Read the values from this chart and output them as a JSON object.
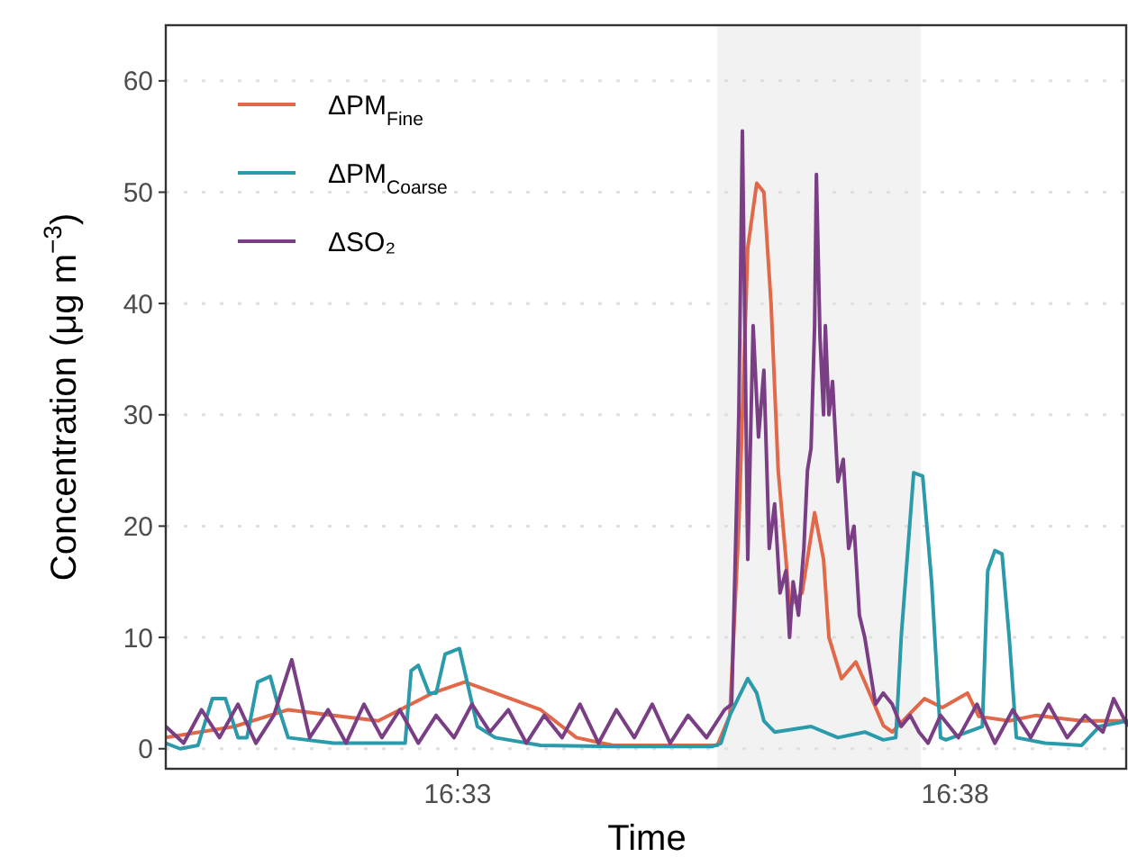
{
  "chart_data": {
    "type": "line",
    "xlabel": "Time",
    "ylabel": "Concentration (μg m$^{−3}$)",
    "xlim": [
      16.5011,
      16.6623
    ],
    "ylim": [
      -1.8,
      65
    ],
    "xticks": [
      {
        "value": 16.55,
        "label": "16:33"
      },
      {
        "value": 16.63333,
        "label": "16:38"
      }
    ],
    "yticks": [
      0,
      10,
      20,
      30,
      40,
      50,
      60
    ],
    "grid": "y",
    "legend": "top left",
    "line_style": "solid",
    "bands": [
      {
        "axis": "x",
        "from": 16.5935,
        "to": 16.6276,
        "color": "#f2f2f2"
      }
    ],
    "series": [
      {
        "name": "ΔPM$_{Fine}$",
        "color": "#e2684a",
        "x": [
          16.5011,
          16.5126,
          16.5216,
          16.5292,
          16.5367,
          16.5458,
          16.5512,
          16.5563,
          16.5639,
          16.5699,
          16.576,
          16.588,
          16.5935,
          16.5956,
          16.5971,
          16.5986,
          16.6001,
          16.6013,
          16.6025,
          16.6037,
          16.605,
          16.6056,
          16.6077,
          16.6098,
          16.6113,
          16.6122,
          16.6143,
          16.6167,
          16.6182,
          16.6213,
          16.6228,
          16.6282,
          16.6312,
          16.6354,
          16.6373,
          16.6424,
          16.6469,
          16.6545,
          16.6623
        ],
        "values": [
          1,
          2,
          3.5,
          3,
          2.5,
          5,
          6,
          5,
          3.5,
          1,
          0.3,
          0.3,
          0.3,
          3,
          20,
          45,
          50.8,
          50,
          40,
          25,
          17,
          12.8,
          14,
          21.2,
          17,
          10,
          6.3,
          7.8,
          6,
          2.1,
          1.5,
          4.5,
          3.7,
          5,
          2.9,
          2.5,
          3,
          2.5,
          2.5
        ]
      },
      {
        "name": "ΔPM$_{Coarse}$",
        "color": "#2b9bab",
        "x": [
          16.5011,
          16.5035,
          16.5065,
          16.5089,
          16.5111,
          16.5132,
          16.5147,
          16.5165,
          16.5186,
          16.5201,
          16.5216,
          16.5292,
          16.5367,
          16.5412,
          16.5422,
          16.5434,
          16.5452,
          16.5464,
          16.5479,
          16.5503,
          16.5518,
          16.5533,
          16.5563,
          16.5639,
          16.576,
          16.5926,
          16.5941,
          16.5956,
          16.5986,
          16.6001,
          16.6013,
          16.6031,
          16.6092,
          16.6137,
          16.6182,
          16.6213,
          16.6234,
          16.6243,
          16.6264,
          16.6279,
          16.6294,
          16.6309,
          16.6318,
          16.6379,
          16.6388,
          16.64,
          16.6412,
          16.6424,
          16.6436,
          16.6484,
          16.6545,
          16.6575,
          16.6623
        ],
        "values": [
          0.5,
          0,
          0.3,
          4.5,
          4.5,
          1,
          1,
          6,
          6.5,
          3.5,
          1,
          0.5,
          0.5,
          0.5,
          7,
          7.5,
          5,
          5,
          8.5,
          9,
          5.5,
          2,
          1,
          0.3,
          0.2,
          0.2,
          0.5,
          3,
          6.3,
          5,
          2.5,
          1.5,
          2,
          1,
          1.5,
          0.8,
          1,
          10,
          24.8,
          24.5,
          15,
          1,
          0.8,
          2,
          16,
          17.8,
          17.5,
          10,
          1,
          0.5,
          0.3,
          2,
          2.5
        ]
      },
      {
        "name": "ΔSO₂",
        "color": "#7a3e85",
        "x": [
          16.5011,
          16.5041,
          16.5071,
          16.5101,
          16.5132,
          16.5162,
          16.5192,
          16.5222,
          16.5252,
          16.5283,
          16.5313,
          16.5343,
          16.5373,
          16.5403,
          16.5434,
          16.5464,
          16.5494,
          16.5524,
          16.5554,
          16.5585,
          16.5615,
          16.5645,
          16.5675,
          16.5705,
          16.5736,
          16.5766,
          16.5796,
          16.5826,
          16.5856,
          16.5886,
          16.5917,
          16.5947,
          16.5959,
          16.5971,
          16.5977,
          16.5986,
          16.5995,
          16.6004,
          16.6013,
          16.6022,
          16.6031,
          16.604,
          16.605,
          16.6056,
          16.6062,
          16.6071,
          16.608,
          16.6086,
          16.6092,
          16.6098,
          16.6101,
          16.6107,
          16.6113,
          16.6116,
          16.6122,
          16.6128,
          16.6137,
          16.6146,
          16.6155,
          16.6164,
          16.6173,
          16.6182,
          16.6191,
          16.62,
          16.6213,
          16.6228,
          16.6243,
          16.6258,
          16.6273,
          16.6288,
          16.6309,
          16.6339,
          16.637,
          16.64,
          16.643,
          16.646,
          16.649,
          16.6521,
          16.6551,
          16.6581,
          16.6599,
          16.6623
        ],
        "values": [
          2,
          0.5,
          3.5,
          1,
          4,
          0.5,
          3,
          8,
          1,
          3.5,
          0.5,
          4,
          1,
          3.5,
          0.5,
          3,
          1,
          4,
          1.5,
          3.5,
          0.5,
          3,
          1,
          4,
          0.5,
          3.5,
          1,
          4,
          0.5,
          3,
          1,
          3.5,
          4,
          30,
          55.5,
          17,
          38,
          28,
          34,
          18,
          22,
          14,
          16,
          10,
          15,
          12,
          18,
          25,
          27,
          38,
          51.6,
          37,
          30,
          38,
          30,
          33,
          24,
          26,
          18,
          20,
          12,
          10,
          7,
          4,
          5,
          4,
          2,
          3,
          1.5,
          0.5,
          3,
          1,
          4,
          0.5,
          3.5,
          1,
          4,
          1,
          3,
          1.5,
          4.5,
          2
        ]
      }
    ]
  }
}
